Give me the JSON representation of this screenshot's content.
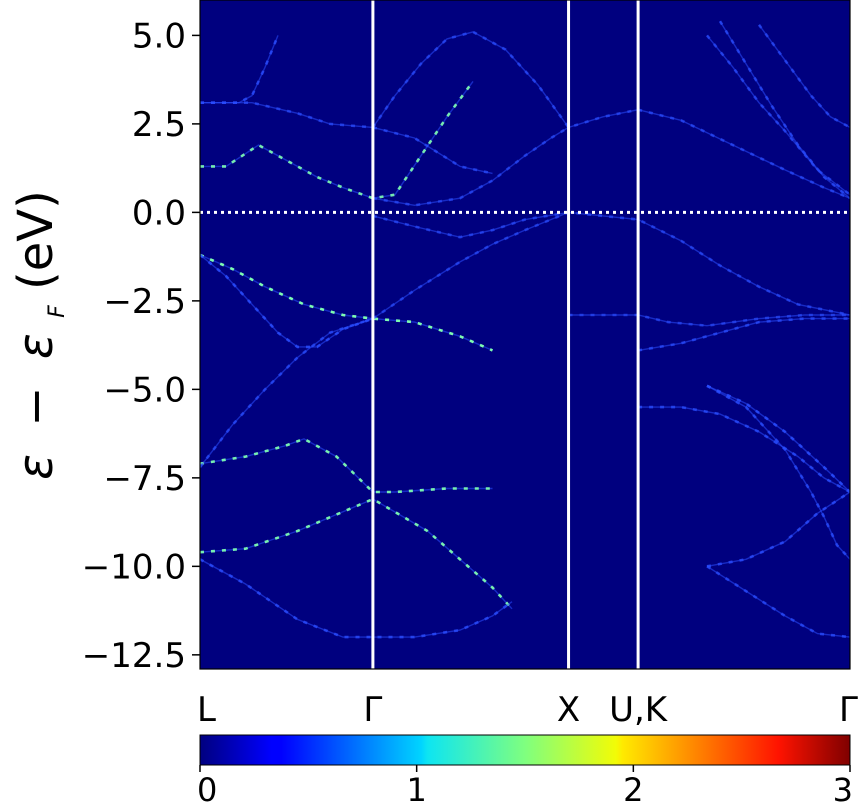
{
  "chart_data": {
    "type": "heatmap",
    "title": "",
    "xlabel": "",
    "ylabel_parts": {
      "eps": "ε",
      "minus": "−",
      "eps_sub_base": "ε",
      "sub": "F",
      "unit": "(eV)"
    },
    "ylim": [
      -12.9,
      6.0
    ],
    "yticks": [
      {
        "value": 5.0,
        "label": "5.0"
      },
      {
        "value": 2.5,
        "label": "2.5"
      },
      {
        "value": 0.0,
        "label": "0.0"
      },
      {
        "value": -2.5,
        "label": "−2.5"
      },
      {
        "value": -5.0,
        "label": "−5.0"
      },
      {
        "value": -7.5,
        "label": "−7.5"
      },
      {
        "value": -10.0,
        "label": "−10.0"
      },
      {
        "value": -12.5,
        "label": "−12.5"
      }
    ],
    "kpath": [
      {
        "label": "L",
        "k": 0.0
      },
      {
        "label": "Γ",
        "k": 0.266
      },
      {
        "label": "X",
        "k": 0.567
      },
      {
        "label": "U,K",
        "k": 0.674
      },
      {
        "label": "Γ",
        "k": 1.0
      }
    ],
    "fermi_level": 0.0,
    "colormap": "jet",
    "colorbar": {
      "min": 0,
      "max": 3,
      "ticks": [
        {
          "value": 0,
          "label": "0"
        },
        {
          "value": 1,
          "label": "1"
        },
        {
          "value": 2,
          "label": "2"
        },
        {
          "value": 3,
          "label": "3"
        }
      ]
    },
    "background_color": "#00007f",
    "band_color": "#2a4dff",
    "highlight_color": "#7fffb0",
    "bands": [
      {
        "name": "",
        "weight": 1.6,
        "points": [
          [
            0.0,
            -9.6
          ],
          [
            0.07,
            -9.5
          ],
          [
            0.15,
            -9.0
          ],
          [
            0.266,
            -8.1
          ],
          [
            0.35,
            -9.0
          ],
          [
            0.4,
            -9.8
          ],
          [
            0.45,
            -10.6
          ],
          [
            0.48,
            -11.2
          ]
        ]
      },
      {
        "name": "",
        "weight": 1.1,
        "points": [
          [
            0.0,
            -9.8
          ],
          [
            0.07,
            -10.5
          ],
          [
            0.15,
            -11.5
          ],
          [
            0.22,
            -12.0
          ],
          [
            0.266,
            -12.0
          ],
          [
            0.33,
            -12.0
          ],
          [
            0.4,
            -11.8
          ],
          [
            0.45,
            -11.4
          ],
          [
            0.48,
            -11.0
          ]
        ]
      },
      {
        "name": "",
        "weight": 1.6,
        "points": [
          [
            0.0,
            -7.1
          ],
          [
            0.07,
            -6.9
          ],
          [
            0.13,
            -6.6
          ],
          [
            0.16,
            -6.4
          ],
          [
            0.21,
            -6.9
          ],
          [
            0.266,
            -7.9
          ],
          [
            0.3,
            -7.9
          ],
          [
            0.38,
            -7.8
          ],
          [
            0.45,
            -7.8
          ]
        ]
      },
      {
        "name": "",
        "weight": 0.9,
        "points": [
          [
            0.0,
            -7.2
          ],
          [
            0.05,
            -6.0
          ],
          [
            0.1,
            -5.0
          ],
          [
            0.15,
            -4.1
          ],
          [
            0.2,
            -3.4
          ],
          [
            0.266,
            -3.0
          ]
        ]
      },
      {
        "name": "",
        "weight": 1.8,
        "points": [
          [
            0.0,
            -1.2
          ],
          [
            0.05,
            -1.6
          ],
          [
            0.1,
            -2.1
          ],
          [
            0.16,
            -2.6
          ],
          [
            0.22,
            -2.9
          ],
          [
            0.266,
            -3.0
          ],
          [
            0.33,
            -3.1
          ],
          [
            0.4,
            -3.5
          ],
          [
            0.45,
            -3.9
          ]
        ]
      },
      {
        "name": "",
        "weight": 1.2,
        "points": [
          [
            0.0,
            -1.2
          ],
          [
            0.04,
            -1.8
          ],
          [
            0.08,
            -2.6
          ],
          [
            0.12,
            -3.4
          ],
          [
            0.15,
            -3.8
          ],
          [
            0.18,
            -3.8
          ],
          [
            0.22,
            -3.3
          ],
          [
            0.266,
            -3.0
          ]
        ]
      },
      {
        "name": "",
        "weight": 1.5,
        "points": [
          [
            0.0,
            1.3
          ],
          [
            0.04,
            1.3
          ],
          [
            0.09,
            1.9
          ],
          [
            0.13,
            1.5
          ],
          [
            0.18,
            1.0
          ],
          [
            0.22,
            0.7
          ],
          [
            0.266,
            0.4
          ],
          [
            0.3,
            0.5
          ],
          [
            0.34,
            1.6
          ],
          [
            0.38,
            2.7
          ],
          [
            0.42,
            3.7
          ]
        ]
      },
      {
        "name": "",
        "weight": 1.1,
        "points": [
          [
            0.0,
            3.1
          ],
          [
            0.06,
            3.1
          ],
          [
            0.08,
            3.3
          ],
          [
            0.1,
            4.1
          ],
          [
            0.12,
            5.0
          ]
        ]
      },
      {
        "name": "",
        "weight": 0.8,
        "points": [
          [
            0.0,
            3.1
          ],
          [
            0.08,
            3.1
          ],
          [
            0.15,
            2.8
          ],
          [
            0.2,
            2.5
          ],
          [
            0.266,
            2.4
          ],
          [
            0.33,
            2.1
          ],
          [
            0.4,
            1.3
          ],
          [
            0.45,
            1.1
          ]
        ]
      },
      {
        "name": "",
        "weight": 0.8,
        "points": [
          [
            0.266,
            2.4
          ],
          [
            0.3,
            3.3
          ],
          [
            0.34,
            4.2
          ],
          [
            0.38,
            4.9
          ],
          [
            0.42,
            5.1
          ],
          [
            0.47,
            4.6
          ],
          [
            0.52,
            3.6
          ],
          [
            0.567,
            2.4
          ],
          [
            0.62,
            2.7
          ],
          [
            0.674,
            2.9
          ],
          [
            0.74,
            2.6
          ],
          [
            0.82,
            1.9
          ],
          [
            0.9,
            1.2
          ],
          [
            0.96,
            0.7
          ],
          [
            1.0,
            0.4
          ]
        ]
      },
      {
        "name": "",
        "weight": 0.7,
        "points": [
          [
            0.266,
            0.4
          ],
          [
            0.33,
            0.2
          ],
          [
            0.4,
            0.4
          ],
          [
            0.45,
            0.9
          ],
          [
            0.5,
            1.6
          ],
          [
            0.54,
            2.1
          ],
          [
            0.567,
            2.4
          ]
        ]
      },
      {
        "name": "",
        "weight": 0.7,
        "points": [
          [
            0.266,
            -3.0
          ],
          [
            0.33,
            -2.2
          ],
          [
            0.4,
            -1.4
          ],
          [
            0.45,
            -0.9
          ],
          [
            0.5,
            -0.5
          ],
          [
            0.567,
            0.0
          ]
        ]
      },
      {
        "name": "",
        "weight": 0.7,
        "points": [
          [
            0.266,
            -0.1
          ],
          [
            0.33,
            -0.4
          ],
          [
            0.4,
            -0.7
          ],
          [
            0.45,
            -0.5
          ],
          [
            0.5,
            -0.2
          ],
          [
            0.567,
            0.0
          ],
          [
            0.62,
            -0.1
          ],
          [
            0.674,
            -0.2
          ],
          [
            0.74,
            -0.8
          ],
          [
            0.8,
            -1.5
          ],
          [
            0.86,
            -2.1
          ],
          [
            0.92,
            -2.6
          ],
          [
            1.0,
            -2.9
          ]
        ]
      },
      {
        "name": "",
        "weight": 0.6,
        "points": [
          [
            0.567,
            -2.9
          ],
          [
            0.62,
            -2.9
          ],
          [
            0.674,
            -2.9
          ],
          [
            0.72,
            -3.1
          ],
          [
            0.78,
            -3.2
          ],
          [
            0.86,
            -3.0
          ],
          [
            0.93,
            -2.9
          ],
          [
            1.0,
            -2.9
          ]
        ]
      },
      {
        "name": "",
        "weight": 0.9,
        "points": [
          [
            0.674,
            -3.9
          ],
          [
            0.74,
            -3.7
          ],
          [
            0.8,
            -3.4
          ],
          [
            0.86,
            -3.1
          ],
          [
            0.93,
            -3.0
          ],
          [
            1.0,
            -3.0
          ]
        ]
      },
      {
        "name": "",
        "weight": 1.0,
        "points": [
          [
            0.674,
            -5.5
          ],
          [
            0.74,
            -5.5
          ],
          [
            0.8,
            -5.7
          ],
          [
            0.86,
            -6.2
          ],
          [
            0.92,
            -6.9
          ],
          [
            0.96,
            -7.5
          ],
          [
            1.0,
            -7.9
          ]
        ]
      },
      {
        "name": "",
        "weight": 1.3,
        "points": [
          [
            0.78,
            -4.9
          ],
          [
            0.84,
            -5.4
          ],
          [
            0.9,
            -6.2
          ],
          [
            0.96,
            -7.2
          ],
          [
            1.0,
            -7.9
          ]
        ]
      },
      {
        "name": "",
        "weight": 1.0,
        "points": [
          [
            0.78,
            -4.9
          ],
          [
            0.84,
            -5.5
          ],
          [
            0.9,
            -6.7
          ],
          [
            0.94,
            -7.9
          ],
          [
            0.96,
            -8.6
          ],
          [
            0.98,
            -9.4
          ],
          [
            1.0,
            -9.8
          ]
        ]
      },
      {
        "name": "",
        "weight": 1.1,
        "points": [
          [
            0.78,
            -10.0
          ],
          [
            0.84,
            -9.8
          ],
          [
            0.9,
            -9.3
          ],
          [
            0.95,
            -8.5
          ],
          [
            1.0,
            -7.9
          ]
        ]
      },
      {
        "name": "",
        "weight": 0.9,
        "points": [
          [
            0.78,
            -10.0
          ],
          [
            0.84,
            -10.7
          ],
          [
            0.9,
            -11.4
          ],
          [
            0.95,
            -11.9
          ],
          [
            1.0,
            -12.0
          ]
        ]
      },
      {
        "name": "",
        "weight": 0.9,
        "points": [
          [
            0.8,
            5.4
          ],
          [
            0.84,
            4.2
          ],
          [
            0.88,
            3.0
          ],
          [
            0.92,
            1.9
          ],
          [
            0.96,
            1.0
          ],
          [
            1.0,
            0.4
          ]
        ]
      },
      {
        "name": "",
        "weight": 0.8,
        "points": [
          [
            0.78,
            5.0
          ],
          [
            0.82,
            4.1
          ],
          [
            0.86,
            3.1
          ],
          [
            0.9,
            2.3
          ],
          [
            0.95,
            1.2
          ],
          [
            1.0,
            0.5
          ]
        ]
      },
      {
        "name": "",
        "weight": 0.8,
        "points": [
          [
            0.86,
            5.3
          ],
          [
            0.9,
            4.3
          ],
          [
            0.94,
            3.3
          ],
          [
            0.97,
            2.7
          ],
          [
            1.0,
            2.4
          ]
        ]
      }
    ]
  }
}
